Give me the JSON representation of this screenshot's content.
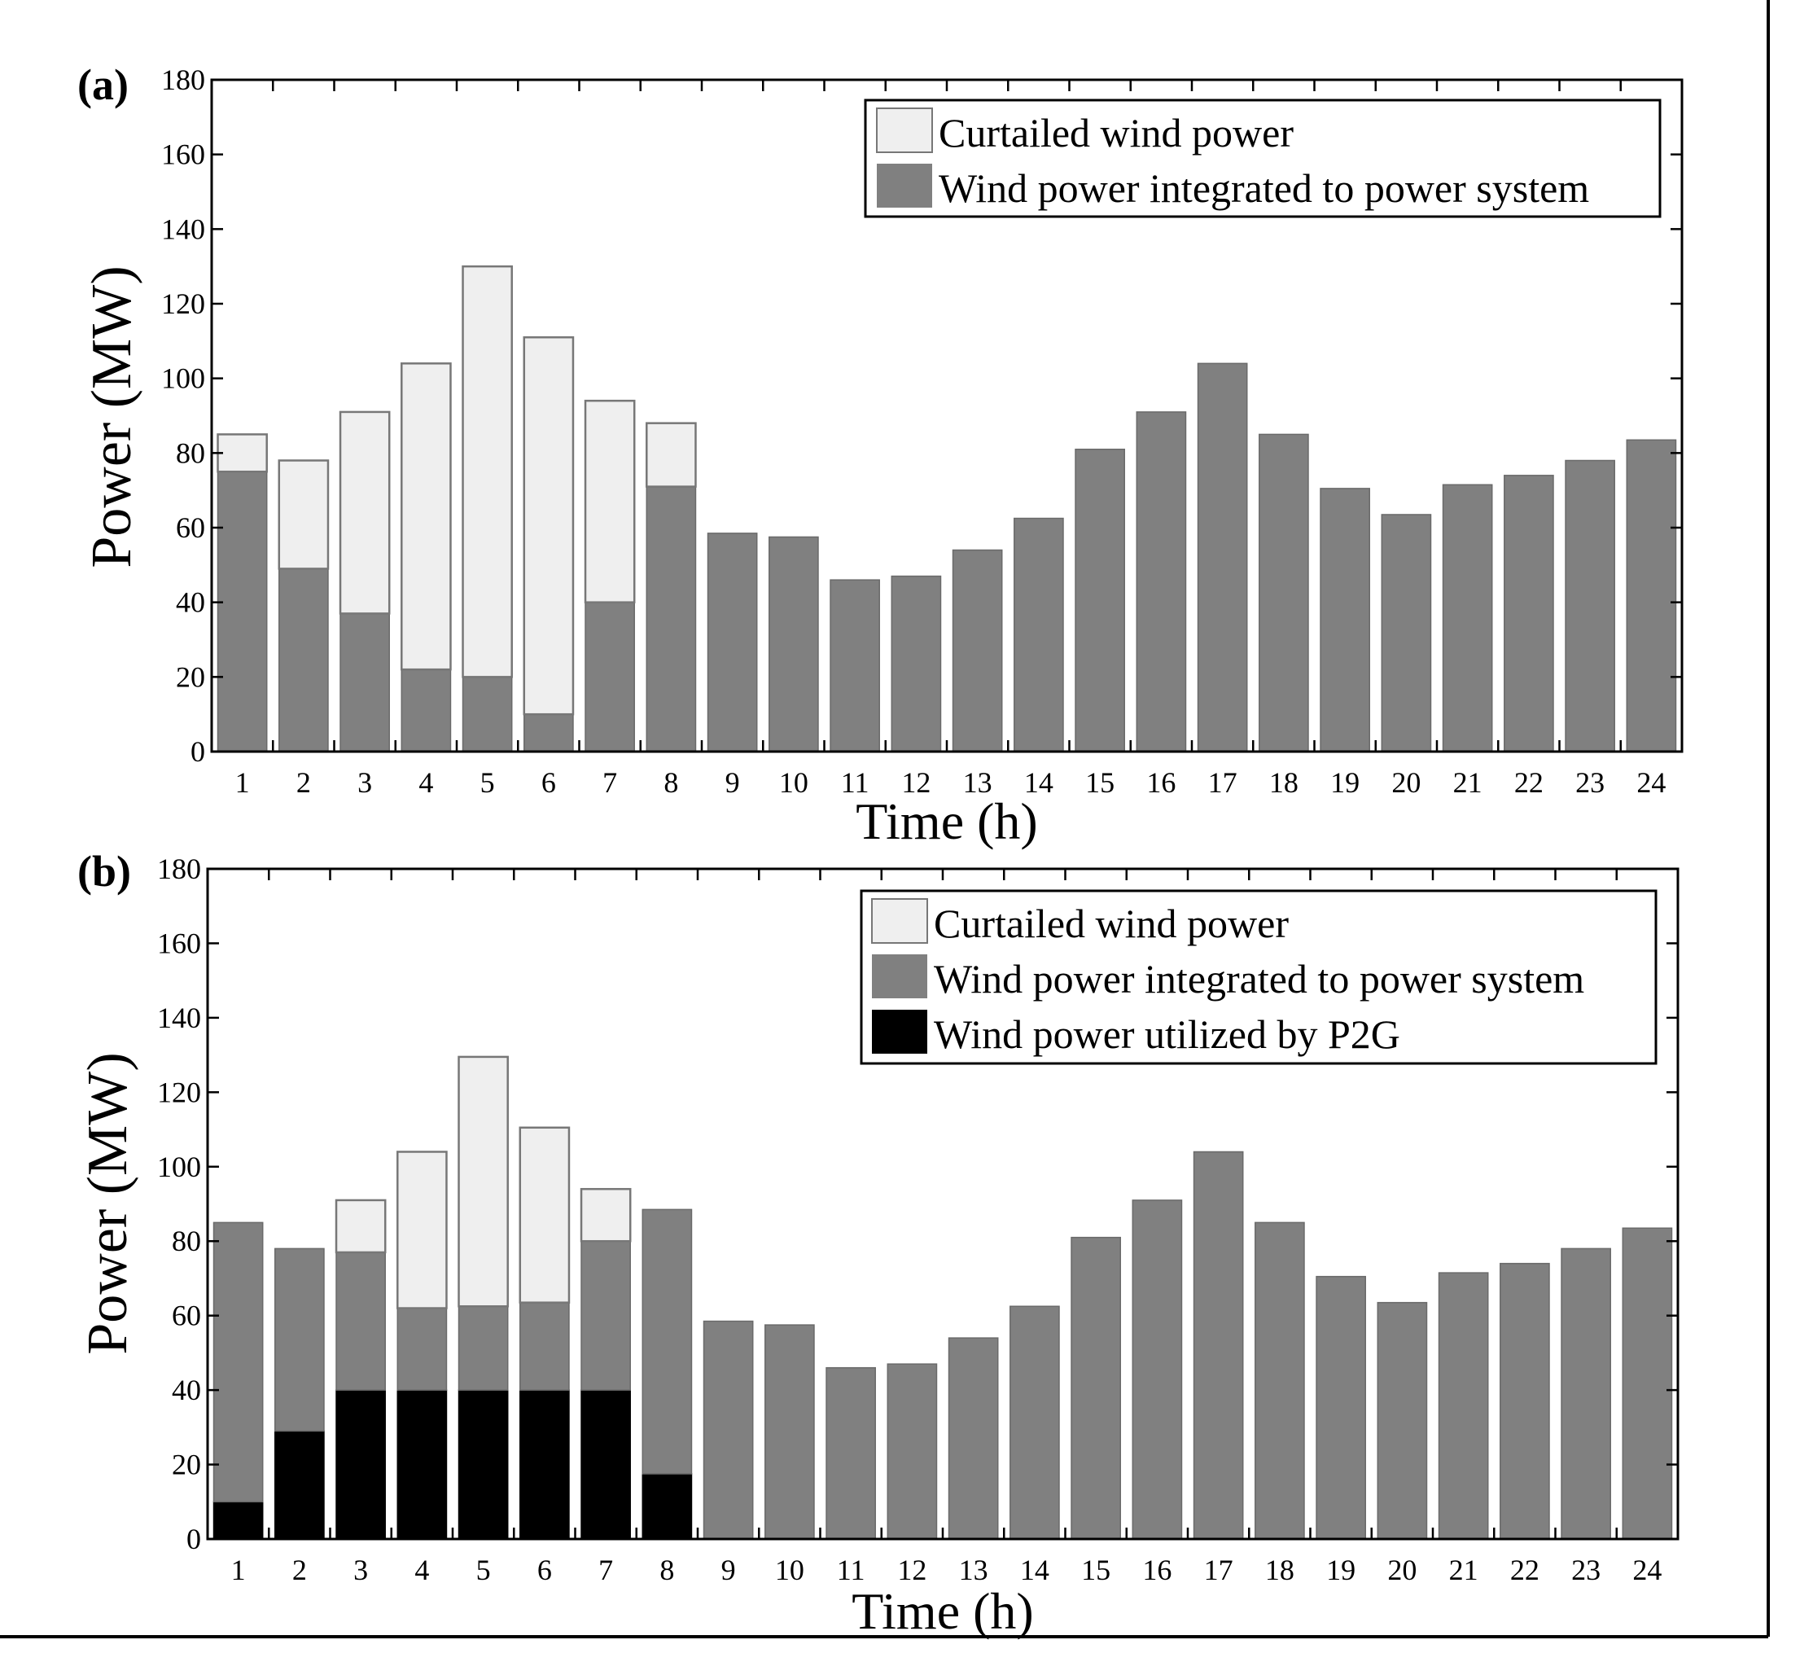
{
  "colors": {
    "curtailed": "#efefef",
    "integrated": "#808080",
    "p2g": "#000000",
    "curtailed_edge": "#777777"
  },
  "chart_data": [
    {
      "type": "bar",
      "panel_label": "(a)",
      "xlabel": "Time (h)",
      "ylabel": "Power (MW)",
      "ylim": [
        0,
        180
      ],
      "y_ticks": [
        "0",
        "20",
        "40",
        "60",
        "80",
        "100",
        "120",
        "140",
        "160",
        "180"
      ],
      "categories": [
        "1",
        "2",
        "3",
        "4",
        "5",
        "6",
        "7",
        "8",
        "9",
        "10",
        "11",
        "12",
        "13",
        "14",
        "15",
        "16",
        "17",
        "18",
        "19",
        "20",
        "21",
        "22",
        "23",
        "24"
      ],
      "legend_position": "top-right",
      "series": [
        {
          "name": "Curtailed wind power",
          "color_key": "curtailed",
          "values": [
            10,
            29,
            54,
            82,
            110,
            101,
            54,
            17,
            0,
            0,
            0,
            0,
            0,
            0,
            0,
            0,
            0,
            0,
            0,
            0,
            0,
            0,
            0,
            0
          ]
        },
        {
          "name": "Wind power integrated to power system",
          "color_key": "integrated",
          "values": [
            75,
            49,
            37,
            22,
            20,
            10,
            40,
            71,
            58.5,
            57.5,
            46,
            47,
            54,
            62.5,
            81,
            91,
            104,
            85,
            70.5,
            63.5,
            71.5,
            74,
            78,
            83.5
          ]
        }
      ]
    },
    {
      "type": "bar",
      "panel_label": "(b)",
      "xlabel": "Time (h)",
      "ylabel": "Power (MW)",
      "ylim": [
        0,
        180
      ],
      "y_ticks": [
        "0",
        "20",
        "40",
        "60",
        "80",
        "100",
        "120",
        "140",
        "160",
        "180"
      ],
      "categories": [
        "1",
        "2",
        "3",
        "4",
        "5",
        "6",
        "7",
        "8",
        "9",
        "10",
        "11",
        "12",
        "13",
        "14",
        "15",
        "16",
        "17",
        "18",
        "19",
        "20",
        "21",
        "22",
        "23",
        "24"
      ],
      "legend_position": "top-right",
      "series": [
        {
          "name": "Curtailed wind power",
          "color_key": "curtailed",
          "values": [
            0,
            0,
            14,
            42,
            67,
            47,
            14,
            0,
            0,
            0,
            0,
            0,
            0,
            0,
            0,
            0,
            0,
            0,
            0,
            0,
            0,
            0,
            0,
            0
          ]
        },
        {
          "name": "Wind power integrated to power system",
          "color_key": "integrated",
          "values": [
            75,
            49,
            37,
            22,
            22.5,
            23.5,
            40,
            71,
            58.5,
            57.5,
            46,
            47,
            54,
            62.5,
            81,
            91,
            104,
            85,
            70.5,
            63.5,
            71.5,
            74,
            78,
            83.5
          ]
        },
        {
          "name": "Wind power utilized by P2G",
          "color_key": "p2g",
          "values": [
            10,
            29,
            40,
            40,
            40,
            40,
            40,
            17.5,
            0,
            0,
            0,
            0,
            0,
            0,
            0,
            0,
            0,
            0,
            0,
            0,
            0,
            0,
            0,
            0
          ]
        }
      ]
    }
  ]
}
